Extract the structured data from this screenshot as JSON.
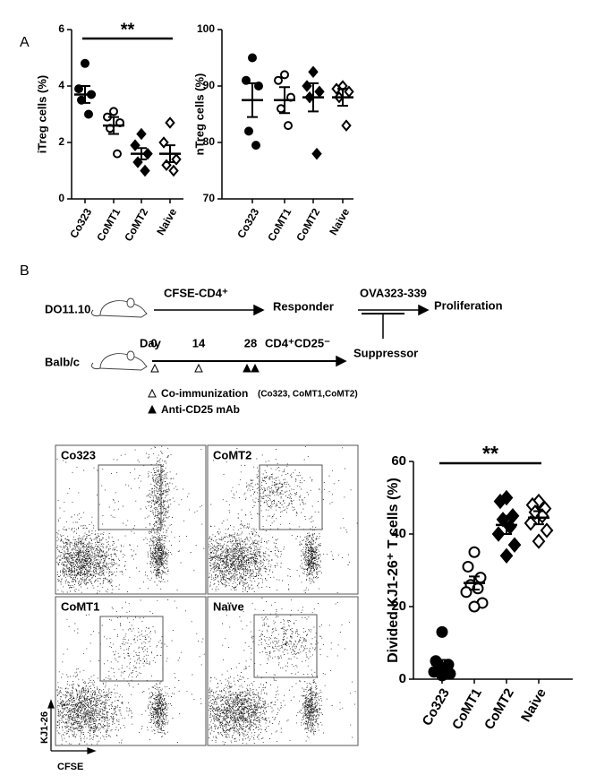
{
  "panel_labels": [
    "A",
    "B"
  ],
  "chart_data": [
    {
      "type": "dot",
      "y_label": "iTreg cells (%)",
      "categories": [
        "Co323",
        "CoMT1",
        "CoMT2",
        "Naive"
      ],
      "markers": [
        "circle-filled",
        "circle-open",
        "diamond-filled",
        "diamond-open"
      ],
      "points": [
        [
          4.8,
          3.9,
          3.7,
          3.5,
          3.0
        ],
        [
          3.1,
          2.9,
          2.7,
          2.5,
          1.6
        ],
        [
          2.3,
          1.9,
          1.6,
          1.3,
          1.0
        ],
        [
          2.7,
          2.0,
          1.4,
          1.2,
          1.0
        ]
      ],
      "mean": [
        3.7,
        2.6,
        1.6,
        1.6
      ],
      "sem": [
        0.3,
        0.3,
        0.2,
        0.3
      ],
      "ylim": [
        0,
        6
      ],
      "yticks": [
        0,
        2,
        4,
        6
      ],
      "significance": "**",
      "color": "#000000"
    },
    {
      "type": "dot",
      "y_label": "nTreg cells (%)",
      "categories": [
        "Co323",
        "CoMT1",
        "CoMT2",
        "Naive"
      ],
      "markers": [
        "circle-filled",
        "circle-open",
        "diamond-filled",
        "diamond-open"
      ],
      "points": [
        [
          95,
          91,
          90,
          82,
          79.5
        ],
        [
          92,
          91,
          88,
          86,
          83
        ],
        [
          92.5,
          90,
          89,
          88,
          78
        ],
        [
          90,
          89.5,
          89,
          88,
          83
        ]
      ],
      "mean": [
        87.5,
        87.5,
        88,
        88
      ],
      "sem": [
        3,
        2.3,
        2.5,
        1.5
      ],
      "ylim": [
        70,
        100
      ],
      "yticks": [
        70,
        80,
        90,
        100
      ],
      "color": "#000000"
    },
    {
      "type": "dot",
      "y_label": "Divided KJ1-26⁺ T cells (%)",
      "categories": [
        "Co323",
        "CoMT1",
        "CoMT2",
        "Naive"
      ],
      "markers": [
        "circle-filled",
        "circle-open",
        "diamond-filled",
        "diamond-open"
      ],
      "points": [
        [
          13,
          5,
          4,
          3,
          2.5,
          2,
          1.5,
          1
        ],
        [
          35,
          31,
          28,
          26,
          25,
          24,
          21,
          20
        ],
        [
          50,
          49,
          45,
          44,
          42,
          40,
          37,
          34
        ],
        [
          49,
          48,
          47,
          46,
          45,
          43,
          41,
          38
        ]
      ],
      "mean": [
        4,
        26.5,
        42.5,
        44.5
      ],
      "sem": [
        1.3,
        1.8,
        2.5,
        1.8
      ],
      "ylim": [
        0,
        60
      ],
      "yticks": [
        0,
        20,
        40,
        60
      ],
      "significance": "**",
      "color": "#000000"
    }
  ],
  "diagram": {
    "strains": [
      "DO11.10",
      "Balb/c"
    ],
    "transfer": "CFSE-CD4⁺",
    "responder": "Responder",
    "stimulus": "OVA323-339",
    "readout": "Proliferation",
    "day_label": "Day",
    "days": [
      0,
      14,
      28
    ],
    "isolated": "CD4⁺CD25⁻",
    "suppressor": "Suppressor",
    "legend": [
      {
        "text": "Co-immunization",
        "detail": "(Co323, CoMT1,CoMT2)"
      },
      {
        "text": "Anti-CD25 mAb"
      }
    ]
  },
  "flow_panels": [
    {
      "label": "Co323"
    },
    {
      "label": "CoMT2"
    },
    {
      "label": "CoMT1"
    },
    {
      "label": "Naïve"
    }
  ],
  "flow_axes": {
    "y": "KJ1-26",
    "x": "CFSE"
  }
}
